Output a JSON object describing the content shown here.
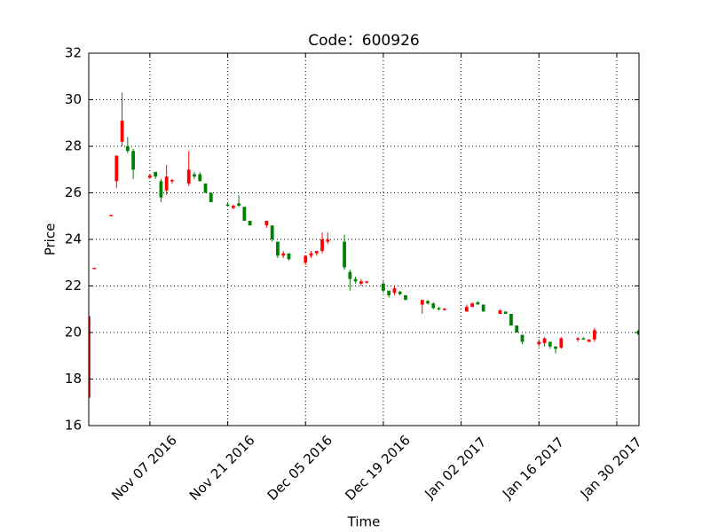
{
  "chart_data": {
    "type": "candlestick",
    "title": "Code：600926",
    "xlabel": "Time",
    "ylabel": "Price",
    "x": [
      "2016-10-27",
      "2016-10-28",
      "2016-10-31",
      "2016-11-01",
      "2016-11-02",
      "2016-11-03",
      "2016-11-04",
      "2016-11-07",
      "2016-11-08",
      "2016-11-09",
      "2016-11-10",
      "2016-11-11",
      "2016-11-14",
      "2016-11-15",
      "2016-11-16",
      "2016-11-17",
      "2016-11-18",
      "2016-11-21",
      "2016-11-22",
      "2016-11-23",
      "2016-11-24",
      "2016-11-25",
      "2016-11-28",
      "2016-11-29",
      "2016-11-30",
      "2016-12-01",
      "2016-12-02",
      "2016-12-05",
      "2016-12-06",
      "2016-12-07",
      "2016-12-08",
      "2016-12-09",
      "2016-12-12",
      "2016-12-13",
      "2016-12-14",
      "2016-12-15",
      "2016-12-16",
      "2016-12-19",
      "2016-12-20",
      "2016-12-21",
      "2016-12-22",
      "2016-12-23",
      "2016-12-26",
      "2016-12-27",
      "2016-12-28",
      "2016-12-29",
      "2016-12-30",
      "2017-01-03",
      "2017-01-04",
      "2017-01-05",
      "2017-01-06",
      "2017-01-09",
      "2017-01-10",
      "2017-01-11",
      "2017-01-12",
      "2017-01-13",
      "2017-01-16",
      "2017-01-17",
      "2017-01-18",
      "2017-01-19",
      "2017-01-20",
      "2017-01-23",
      "2017-01-24",
      "2017-01-25",
      "2017-01-26",
      "2017-02-03"
    ],
    "open": [
      17.2,
      22.78,
      25.05,
      26.5,
      28.2,
      28.0,
      27.8,
      26.65,
      26.9,
      26.5,
      26.1,
      26.5,
      26.4,
      26.8,
      26.8,
      26.4,
      26.0,
      25.5,
      25.35,
      25.55,
      25.4,
      24.8,
      24.6,
      24.6,
      23.9,
      23.3,
      23.4,
      23.0,
      23.3,
      23.4,
      23.5,
      23.9,
      23.9,
      22.6,
      22.3,
      22.1,
      22.15,
      22.1,
      21.8,
      21.7,
      21.75,
      21.6,
      21.2,
      21.35,
      21.25,
      21.05,
      21.0,
      20.9,
      21.1,
      21.3,
      21.2,
      20.8,
      20.9,
      20.8,
      20.3,
      19.9,
      19.5,
      19.55,
      19.6,
      19.4,
      19.35,
      19.7,
      19.75,
      19.6,
      19.7,
      20.1
    ],
    "high": [
      20.7,
      22.78,
      25.05,
      27.6,
      30.3,
      28.4,
      27.9,
      26.8,
      26.9,
      26.6,
      27.2,
      26.6,
      27.8,
      26.9,
      26.9,
      26.4,
      26.0,
      25.6,
      25.5,
      25.9,
      25.4,
      24.8,
      24.8,
      24.6,
      23.9,
      23.5,
      23.4,
      23.3,
      23.5,
      23.5,
      24.3,
      24.3,
      24.2,
      22.7,
      22.4,
      22.3,
      22.2,
      22.2,
      21.8,
      22.0,
      21.8,
      21.6,
      21.4,
      21.4,
      21.3,
      21.1,
      21.05,
      21.2,
      21.3,
      21.35,
      21.2,
      21.0,
      20.9,
      20.8,
      20.3,
      19.9,
      19.7,
      19.8,
      19.6,
      19.4,
      19.8,
      19.8,
      19.8,
      19.7,
      20.2,
      20.1
    ],
    "low": [
      17.2,
      22.78,
      25.05,
      26.2,
      28.0,
      27.7,
      26.6,
      26.6,
      26.6,
      25.6,
      25.9,
      26.4,
      26.3,
      26.6,
      26.5,
      26.0,
      25.6,
      25.4,
      25.3,
      25.4,
      24.8,
      24.6,
      24.5,
      23.9,
      23.2,
      23.2,
      23.1,
      22.9,
      23.2,
      23.3,
      23.4,
      23.8,
      22.7,
      21.8,
      22.1,
      22.0,
      22.1,
      21.7,
      21.5,
      21.6,
      21.6,
      21.4,
      20.8,
      21.2,
      21.0,
      20.95,
      20.95,
      20.9,
      21.1,
      21.2,
      20.9,
      20.8,
      20.8,
      20.3,
      20.0,
      19.5,
      19.4,
      19.4,
      19.3,
      19.1,
      19.3,
      19.6,
      19.7,
      19.6,
      19.6,
      19.9
    ],
    "close": [
      20.7,
      22.78,
      25.05,
      27.6,
      29.1,
      27.8,
      27.0,
      26.75,
      26.7,
      25.8,
      26.7,
      26.55,
      27.0,
      26.7,
      26.5,
      26.0,
      25.6,
      25.45,
      25.45,
      25.45,
      24.8,
      24.6,
      24.8,
      24.0,
      23.3,
      23.4,
      23.15,
      23.3,
      23.4,
      23.5,
      24.0,
      24.0,
      22.8,
      22.3,
      22.2,
      22.2,
      22.2,
      21.8,
      21.6,
      21.9,
      21.65,
      21.4,
      21.4,
      21.25,
      21.05,
      21.0,
      21.02,
      21.1,
      21.25,
      21.2,
      20.9,
      20.95,
      20.8,
      20.3,
      20.0,
      19.6,
      19.6,
      19.75,
      19.4,
      19.3,
      19.75,
      19.75,
      19.7,
      19.7,
      20.1,
      19.9
    ],
    "colorup": "#ff0000",
    "colordown": "#008000",
    "xlim": [
      "2016-10-27",
      "2017-02-03"
    ],
    "xticks": [
      {
        "value": "2016-11-07",
        "label": "Nov 07 2016"
      },
      {
        "value": "2016-11-21",
        "label": "Nov 21 2016"
      },
      {
        "value": "2016-12-05",
        "label": "Dec 05 2016"
      },
      {
        "value": "2016-12-19",
        "label": "Dec 19 2016"
      },
      {
        "value": "2017-01-02",
        "label": "Jan 02 2017"
      },
      {
        "value": "2017-01-16",
        "label": "Jan 16 2017"
      },
      {
        "value": "2017-01-30",
        "label": "Jan 30 2017"
      }
    ],
    "ylim": [
      16,
      32
    ],
    "yticks": [
      16,
      18,
      20,
      22,
      24,
      26,
      28,
      30,
      32
    ],
    "grid": true
  }
}
